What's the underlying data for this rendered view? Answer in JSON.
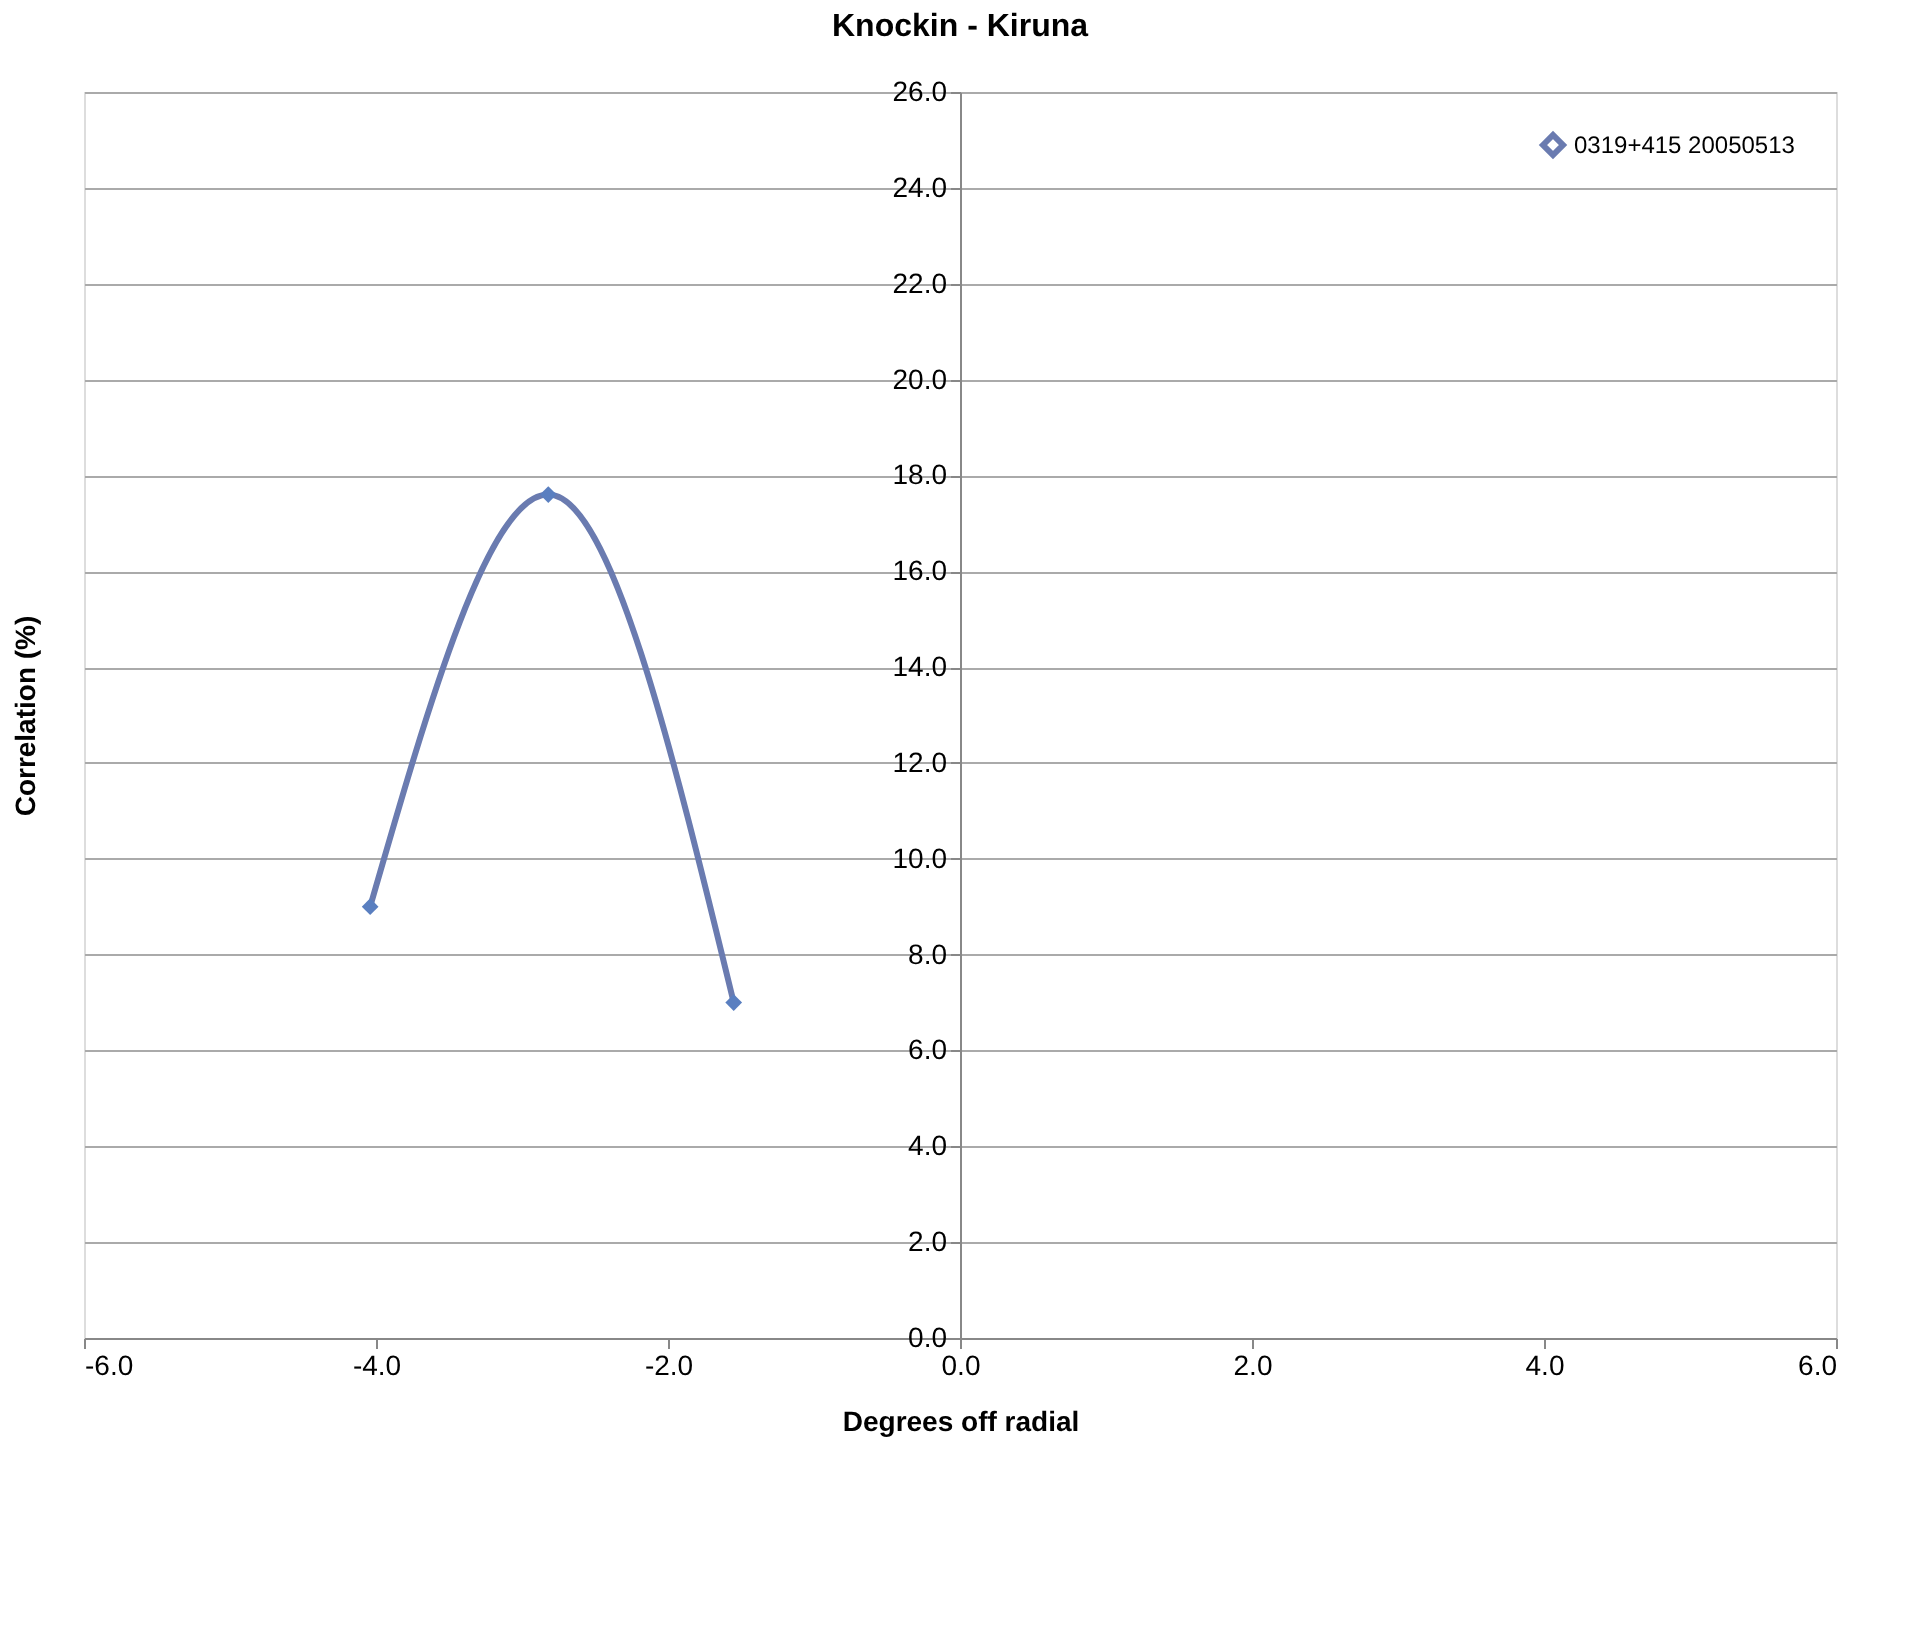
{
  "chart_data": {
    "type": "line",
    "title": "Knockin - Kiruna",
    "xlabel": "Degrees off radial",
    "ylabel": "Correlation (%)",
    "x": [
      -4.04,
      -2.82,
      -1.55
    ],
    "series": [
      {
        "name": "0319+415 20050513",
        "color": "#6a7bb0",
        "values": [
          9.0,
          17.6,
          7.0
        ]
      }
    ],
    "xlim": [
      -6,
      6
    ],
    "xticks": [
      {
        "value": -6,
        "label": "-6.0"
      },
      {
        "value": -4,
        "label": "-4.0"
      },
      {
        "value": -2,
        "label": "-2.0"
      },
      {
        "value": 0,
        "label": "0.0"
      },
      {
        "value": 2,
        "label": "2.0"
      },
      {
        "value": 4,
        "label": "4.0"
      },
      {
        "value": 6,
        "label": "6.0"
      }
    ],
    "ylim": [
      0,
      26
    ],
    "yticks": [
      {
        "value": 0,
        "label": "0.0"
      },
      {
        "value": 2,
        "label": "2.0"
      },
      {
        "value": 4,
        "label": "4.0"
      },
      {
        "value": 6,
        "label": "6.0"
      },
      {
        "value": 8,
        "label": "8.0"
      },
      {
        "value": 10,
        "label": "10.0"
      },
      {
        "value": 12,
        "label": "12.0"
      },
      {
        "value": 14,
        "label": "14.0"
      },
      {
        "value": 16,
        "label": "16.0"
      },
      {
        "value": 18,
        "label": "18.0"
      },
      {
        "value": 20,
        "label": "20.0"
      },
      {
        "value": 22,
        "label": "22.0"
      },
      {
        "value": 24,
        "label": "24.0"
      },
      {
        "value": 26,
        "label": "26.0"
      }
    ],
    "grid": "y",
    "legend": "top right",
    "marker": "diamond",
    "line_style": "solid"
  }
}
